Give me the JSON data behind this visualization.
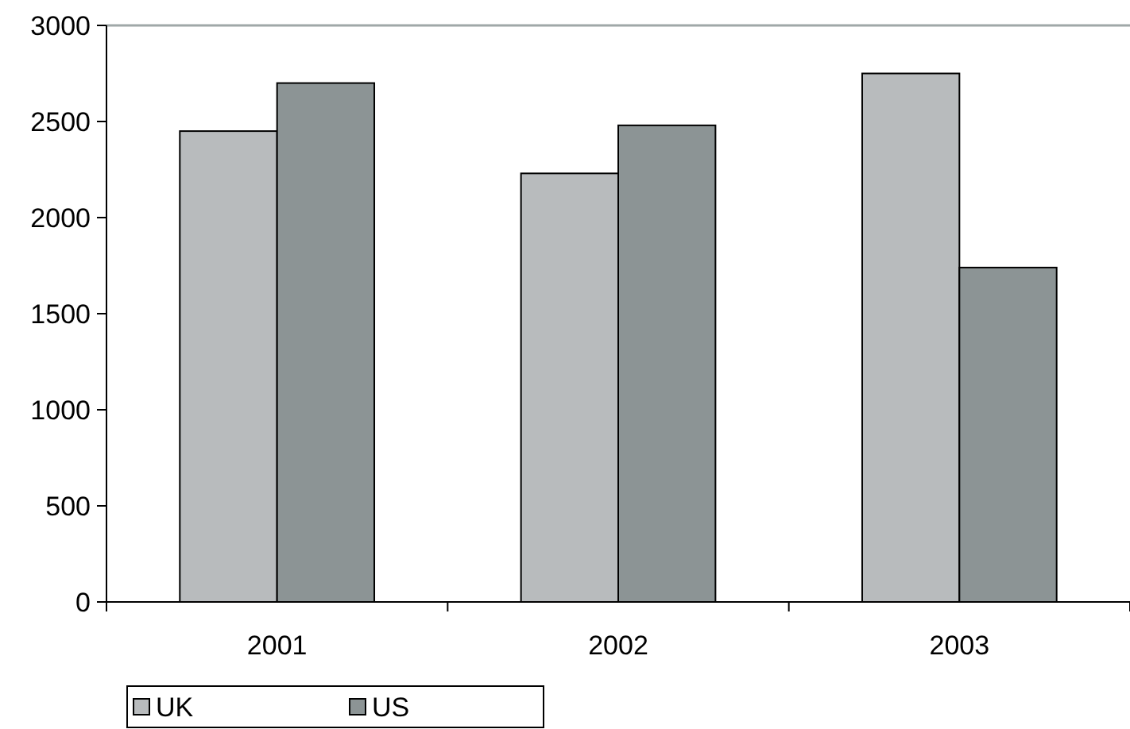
{
  "chart_data": {
    "type": "bar",
    "categories": [
      "2001",
      "2002",
      "2003"
    ],
    "series": [
      {
        "name": "UK",
        "color": "#b8bbbd",
        "values": [
          2450,
          2230,
          2750
        ]
      },
      {
        "name": "US",
        "color": "#8c9495",
        "values": [
          2700,
          2480,
          1740
        ]
      }
    ],
    "ylim": [
      0,
      3000
    ],
    "yticks": [
      0,
      500,
      1000,
      1500,
      2000,
      2500,
      3000
    ],
    "grid": false,
    "legend": "bottom left"
  }
}
